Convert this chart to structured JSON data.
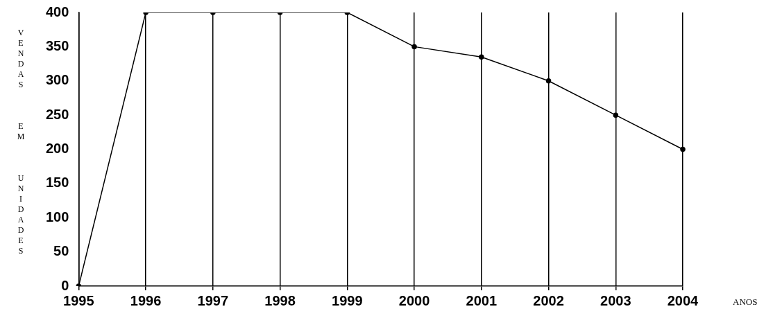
{
  "chart_data": {
    "type": "line",
    "ylabel": "VENDAS EM UNIDADES",
    "xlabel": "ANOS",
    "categories": [
      "1995",
      "1996",
      "1997",
      "1998",
      "1999",
      "2000",
      "2001",
      "2002",
      "2003",
      "2004"
    ],
    "series": [
      {
        "color": "#000000",
        "values": [
          0,
          400,
          400,
          400,
          400,
          350,
          335,
          300,
          250,
          200
        ]
      }
    ],
    "ylim": [
      0,
      400
    ],
    "yticks": [
      0,
      50,
      100,
      150,
      200,
      250,
      300,
      350,
      400
    ],
    "grid": "x",
    "legend": false,
    "marker": "circle",
    "line_style": "solid"
  }
}
